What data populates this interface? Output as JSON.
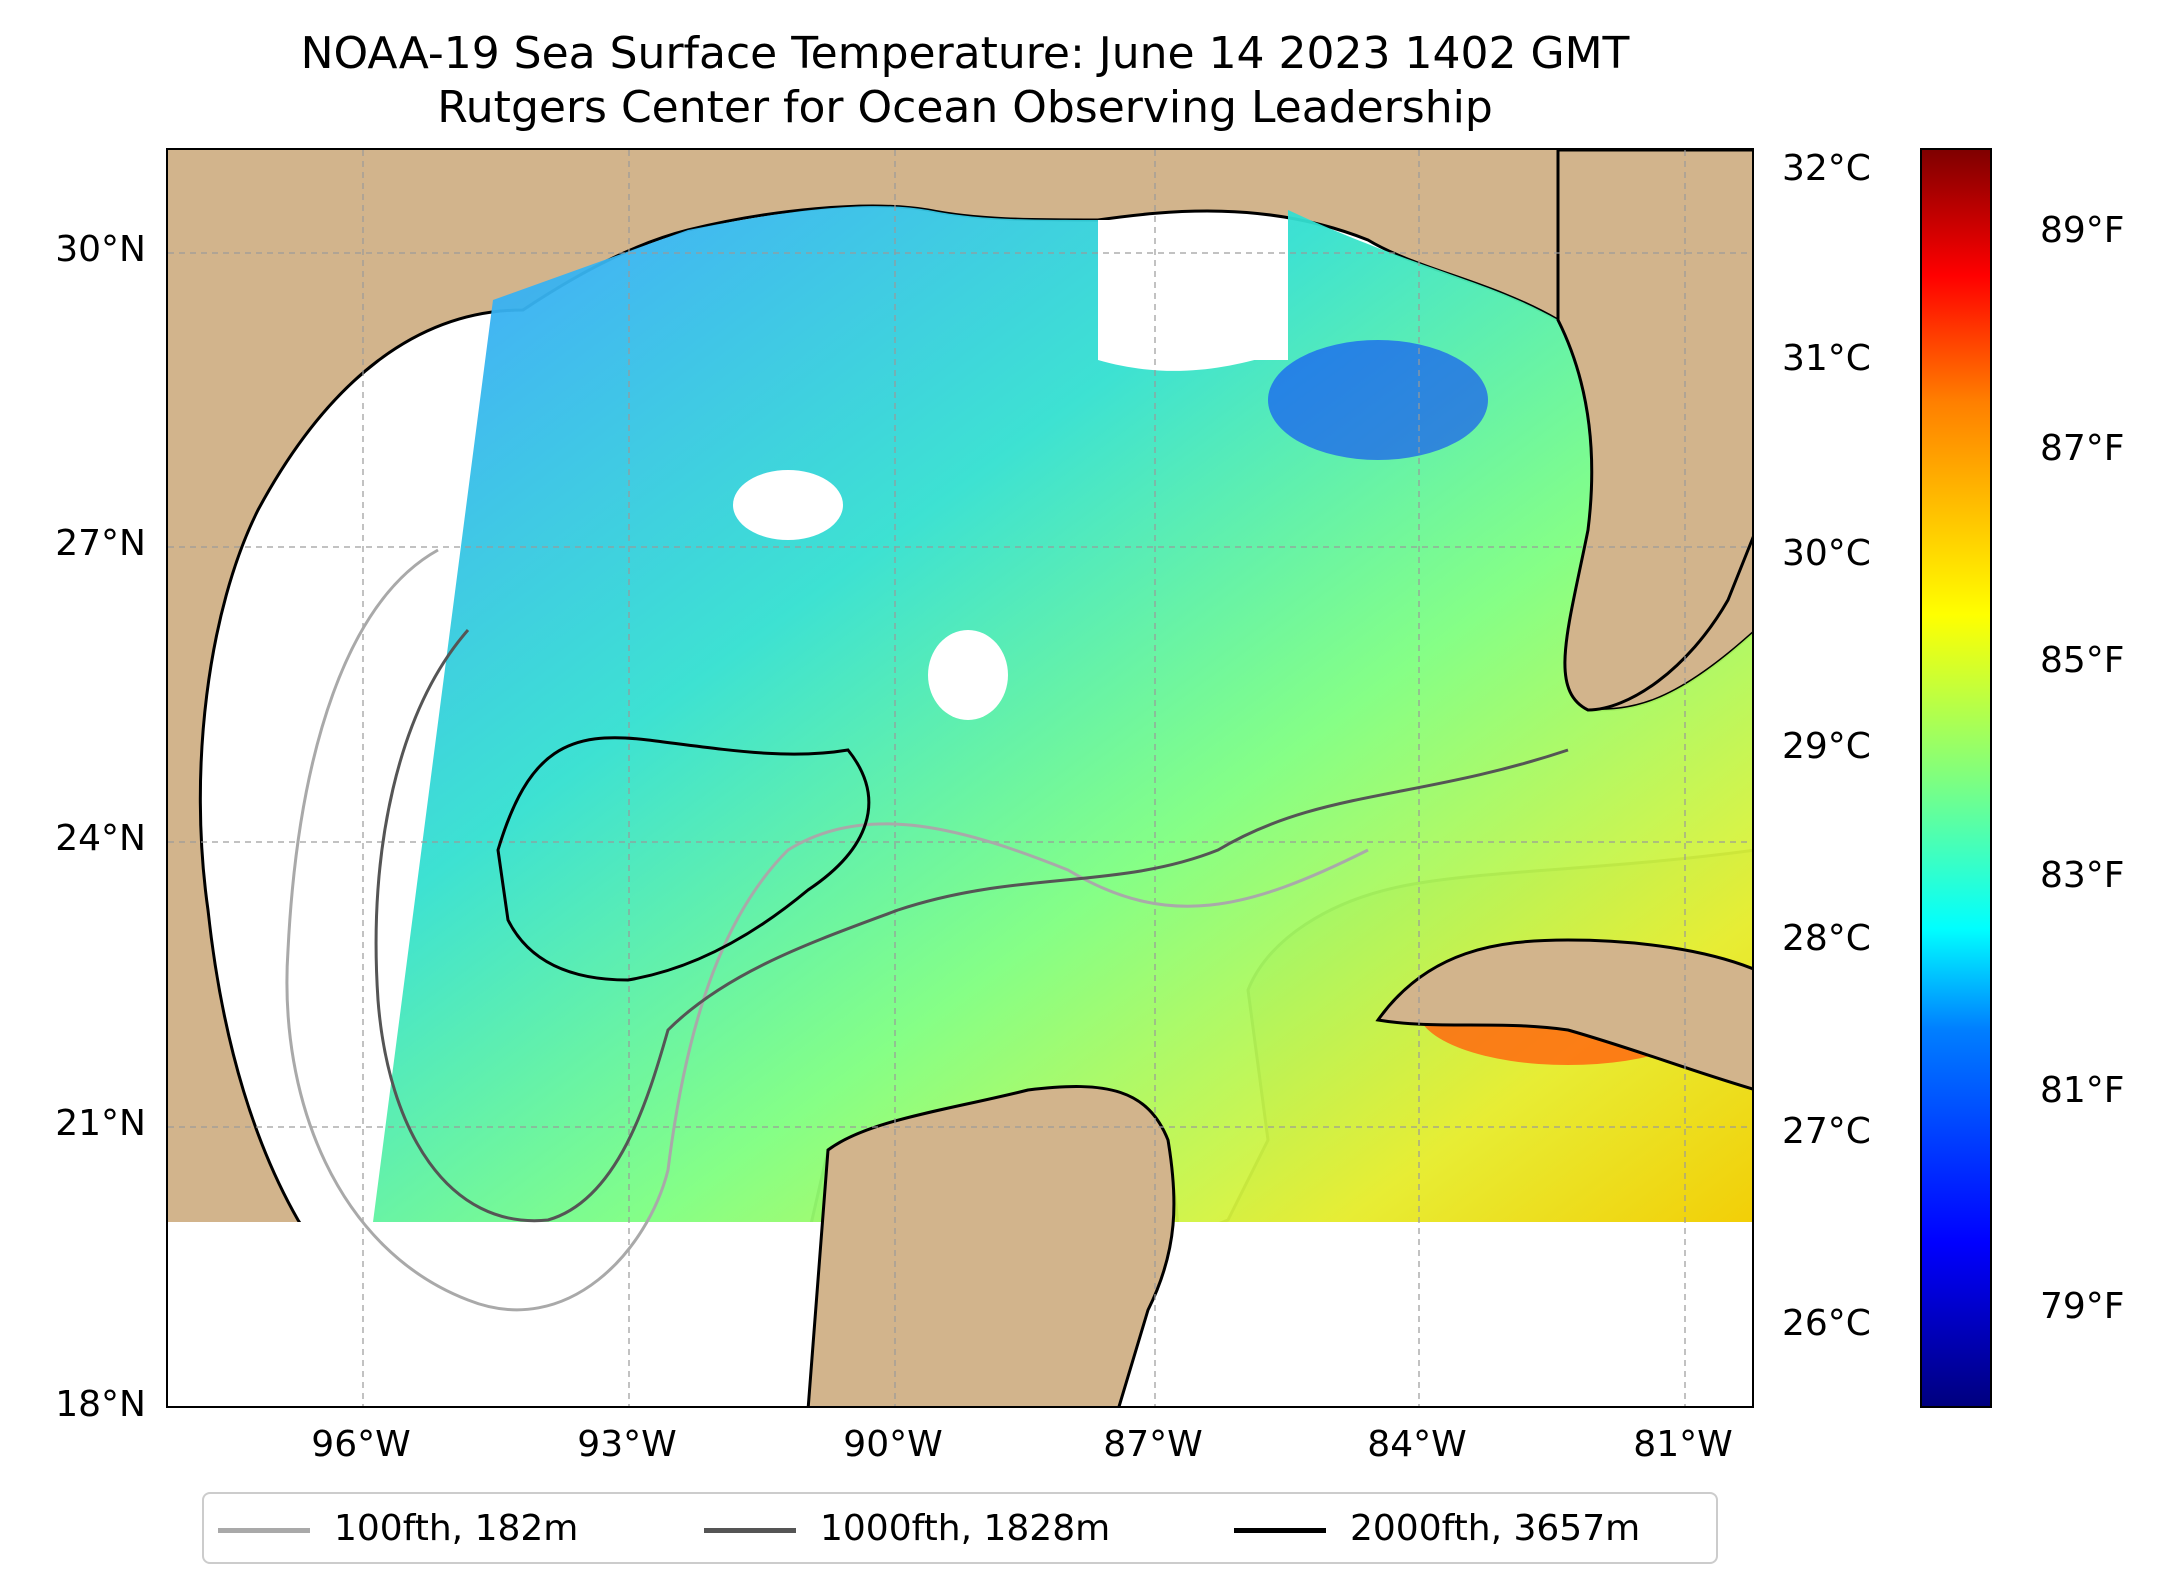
{
  "title": {
    "line1": "NOAA-19 Sea Surface Temperature: June 14 2023 1402 GMT",
    "line2": "Rutgers Center for Ocean Observing Leadership"
  },
  "map": {
    "region": "Gulf of Mexico",
    "projection": "PlateCarree",
    "extent_lon": [
      -98.3,
      -80.3
    ],
    "extent_lat": [
      18.0,
      31.0
    ],
    "lat_ticks": [
      "30°N",
      "27°N",
      "24°N",
      "21°N",
      "18°N"
    ],
    "lon_ticks": [
      "96°W",
      "93°W",
      "90°W",
      "87°W",
      "84°W",
      "81°W"
    ],
    "gridlines": true,
    "colors": {
      "land": "#d2b48c",
      "no_data": "#ffffff",
      "lakes": "#9ab3de",
      "contour_100fth": "#a9a9a9",
      "contour_1000fth": "#555555",
      "contour_2000fth": "#000000"
    }
  },
  "legend": {
    "placement": "bottom-center",
    "items": [
      {
        "label": "100fth, 182m",
        "color": "#a9a9a9"
      },
      {
        "label": "1000fth, 1828m",
        "color": "#555555"
      },
      {
        "label": "2000fth, 3657m",
        "color": "#000000"
      }
    ]
  },
  "colorbar": {
    "colormap": "jet",
    "celsius_range": [
      25.7,
      32.2
    ],
    "celsius_ticks": [
      "32°C",
      "31°C",
      "30°C",
      "29°C",
      "28°C",
      "27°C",
      "26°C"
    ],
    "fahrenheit_ticks": [
      "89°F",
      "87°F",
      "85°F",
      "83°F",
      "81°F",
      "79°F"
    ]
  }
}
